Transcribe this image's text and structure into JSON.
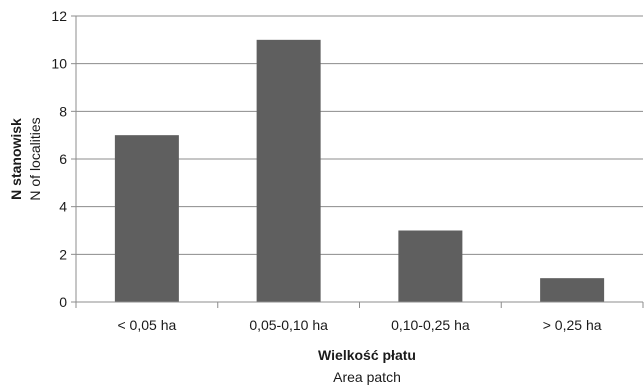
{
  "chart_data": {
    "type": "bar",
    "categories": [
      "< 0,05 ha",
      "0,05-0,10 ha",
      "0,10-0,25 ha",
      "> 0,25 ha"
    ],
    "values": [
      7,
      11,
      3,
      1
    ],
    "title": "",
    "xlabel": "Wielkość płatu",
    "xlabel_secondary": "Area patch",
    "ylabel": "N stanowisk",
    "ylabel_secondary": "N of localities",
    "ylim": [
      0,
      12
    ],
    "yticks": [
      0,
      2,
      4,
      6,
      8,
      10,
      12
    ],
    "grid": true,
    "legend": "none",
    "bar_color": "#5f5f5f",
    "grid_color": "#8c8c8c",
    "axis_color": "#8c8c8c"
  }
}
